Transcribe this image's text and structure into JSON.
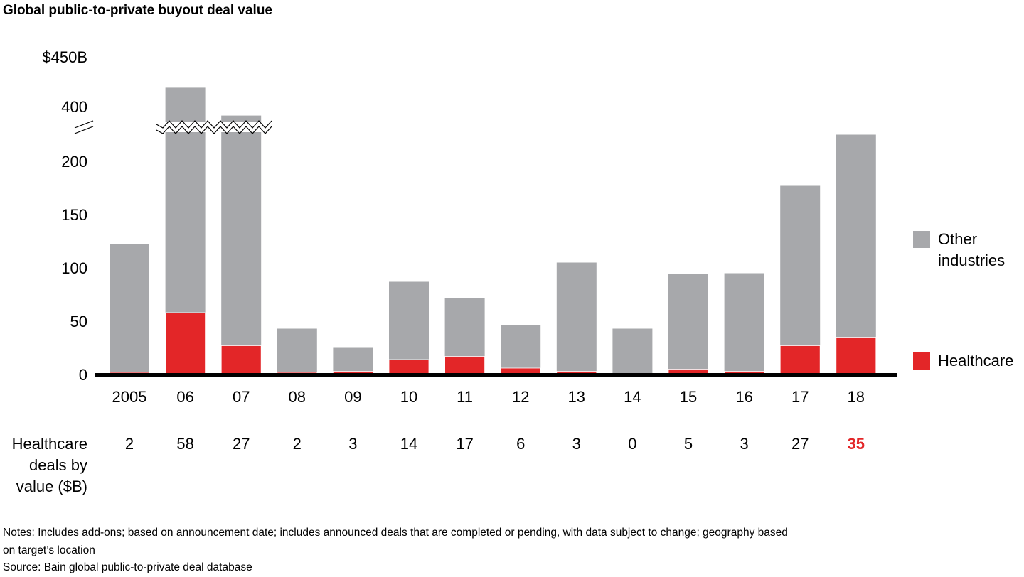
{
  "chart_data": {
    "type": "bar",
    "stacked": true,
    "title": "Global public-to-private buyout deal value",
    "categories": [
      "2005",
      "06",
      "07",
      "08",
      "09",
      "10",
      "11",
      "12",
      "13",
      "14",
      "15",
      "16",
      "17",
      "18"
    ],
    "series": [
      {
        "name": "Healthcare",
        "color": "#e32628",
        "values": [
          2,
          58,
          27,
          2,
          3,
          14,
          17,
          6,
          3,
          0,
          5,
          3,
          27,
          35
        ]
      },
      {
        "name": "Other industries",
        "color": "#a7a8ab",
        "values": [
          120,
          361,
          364,
          41,
          22,
          73,
          55,
          40,
          102,
          43,
          89,
          92,
          150,
          190
        ]
      }
    ],
    "totals": [
      122,
      419,
      391,
      43,
      25,
      87,
      72,
      46,
      105,
      43,
      94,
      95,
      177,
      225
    ],
    "y_axis": {
      "unit_label": "$450B",
      "ticks": [
        "0",
        "50",
        "100",
        "150",
        "200",
        "400"
      ],
      "broken": true,
      "lower_range": [
        0,
        240
      ],
      "upper_range": [
        380,
        450
      ]
    },
    "legend": {
      "placement": "right",
      "entries": [
        "Other industries",
        "Healthcare"
      ]
    },
    "healthcare_row": {
      "label_lines": [
        "Healthcare",
        "deals by",
        "value ($B)"
      ],
      "values": [
        "2",
        "58",
        "27",
        "2",
        "3",
        "14",
        "17",
        "6",
        "3",
        "0",
        "5",
        "3",
        "27",
        "35"
      ],
      "highlight_index": 13,
      "highlight_color": "#e32628"
    },
    "grid": false
  },
  "notes": {
    "line1": "Notes: Includes add-ons; based on announcement date; includes announced deals that are completed or pending, with data subject to change; geography based",
    "line2": "on target’s location",
    "source": "Source: Bain global public-to-private deal database"
  }
}
